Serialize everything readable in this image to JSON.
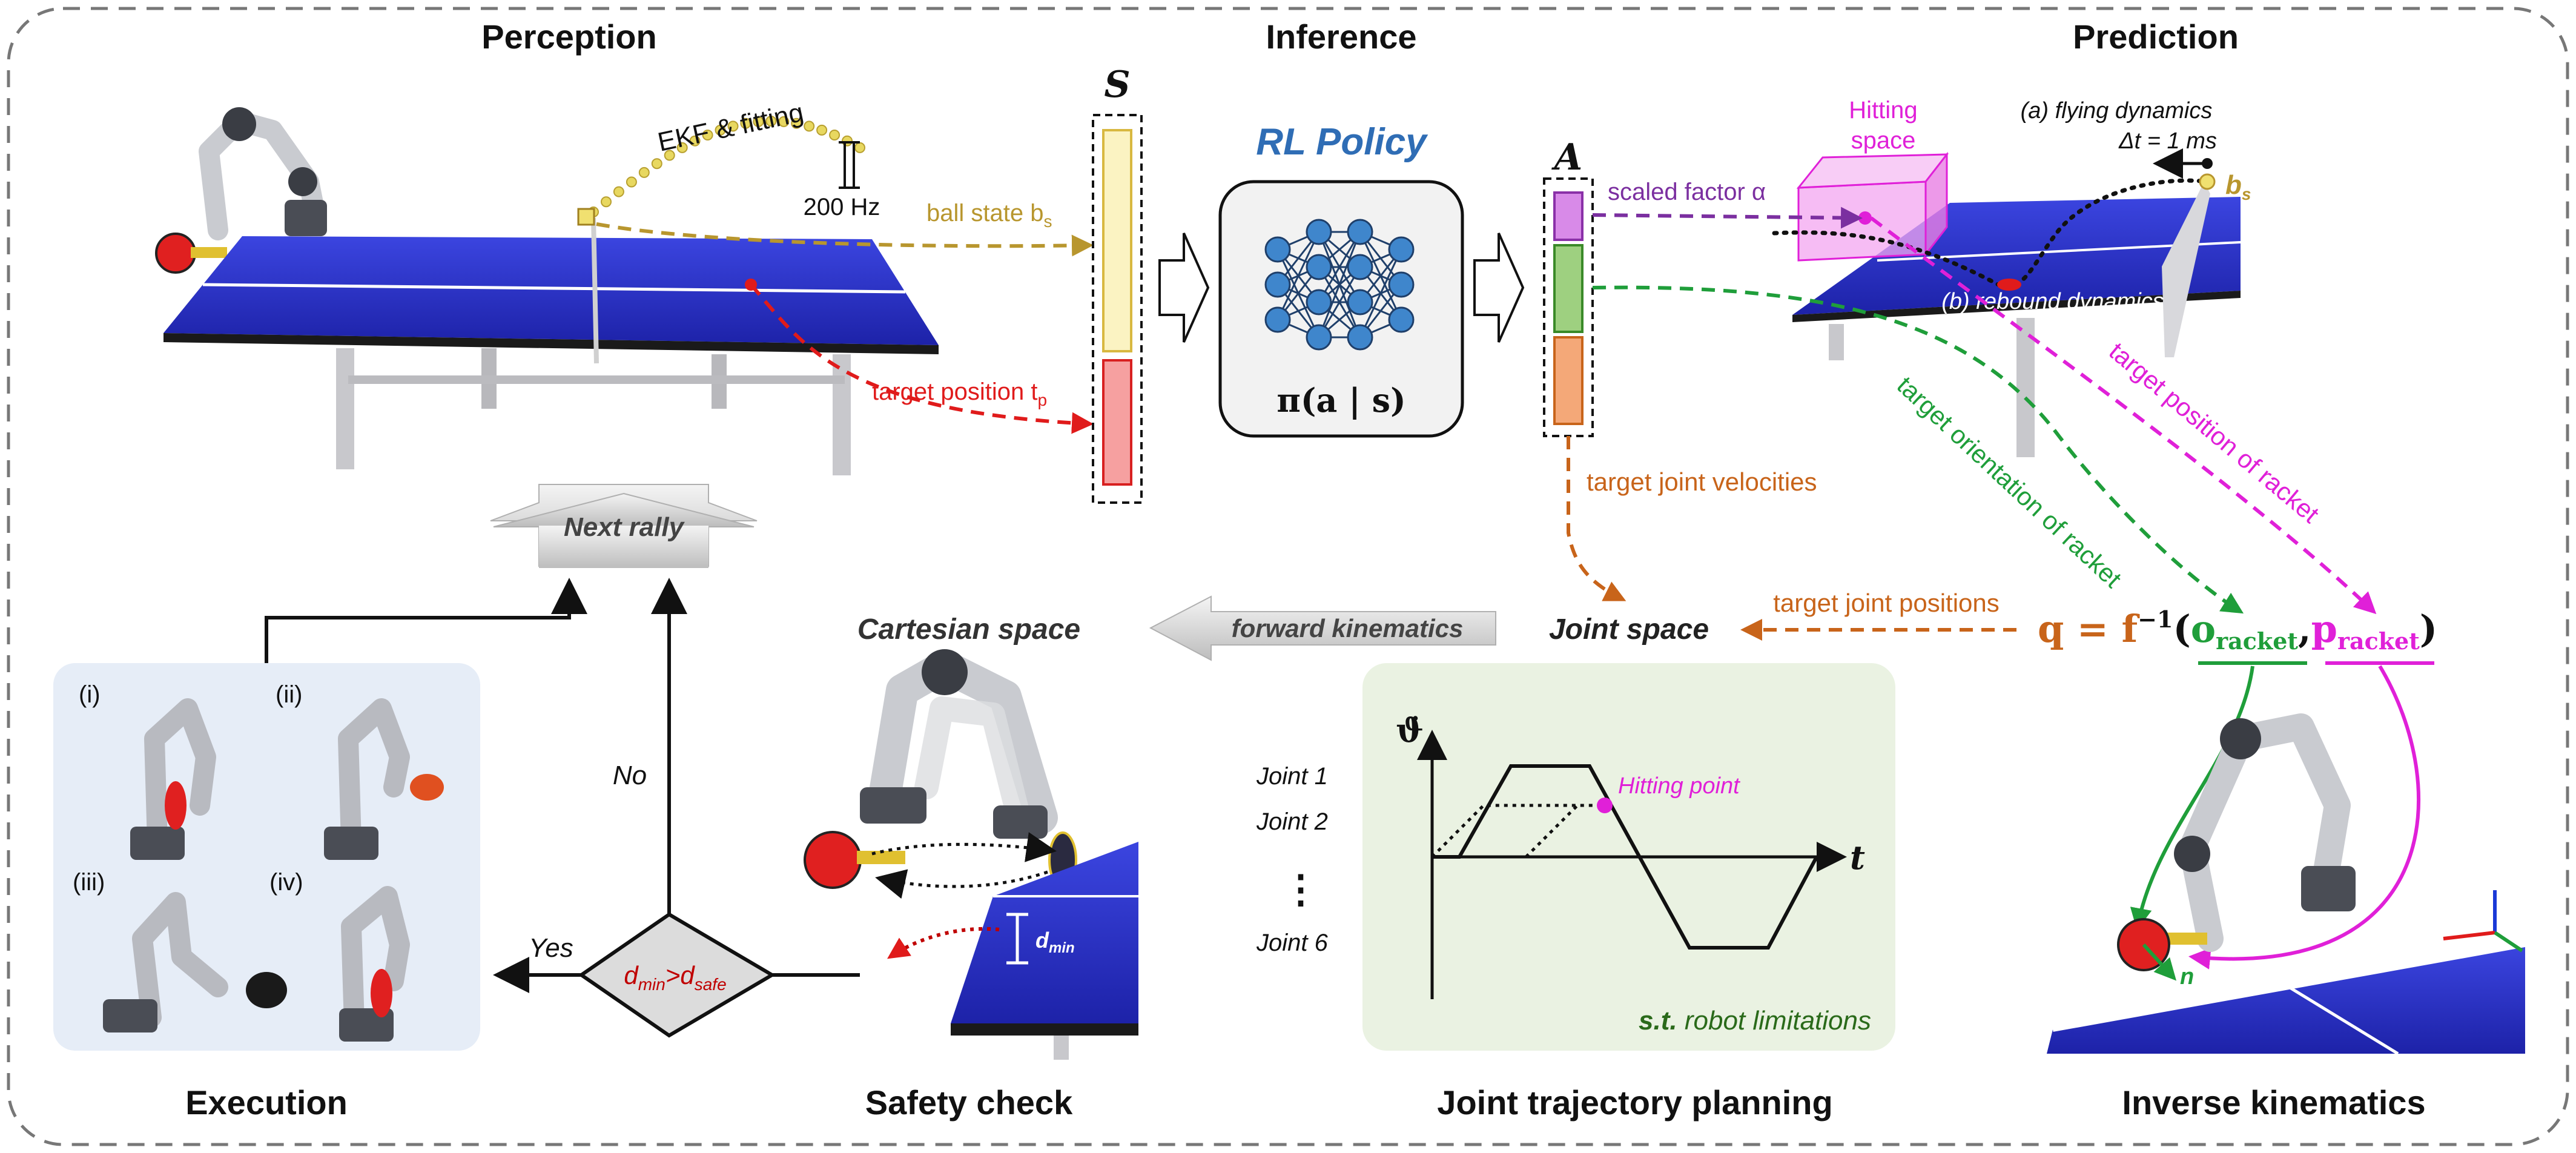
{
  "sections": {
    "perception": "Perception",
    "inference": "Inference",
    "prediction": "Prediction",
    "execution": "Execution",
    "safety_check": "Safety check",
    "joint_trajectory_planning": "Joint trajectory planning",
    "inverse_kinematics": "Inverse kinematics"
  },
  "perception": {
    "ekf_label": "EKF & fitting",
    "rate_label": "200 Hz",
    "ball_state_label": "ball state b",
    "ball_state_sub": "s",
    "target_position_label": "target position t",
    "target_position_sub": "p"
  },
  "inference": {
    "state_symbol": "S",
    "policy_title": "RL Policy",
    "policy_formula": "π(a | s)",
    "action_symbol": "A",
    "target_joint_velocities": "target joint velocities"
  },
  "prediction": {
    "scaled_factor": "scaled factor α",
    "hitting_space_line1": "Hitting",
    "hitting_space_line2": "space",
    "flying_dynamics": "(a) flying dynamics",
    "delta_t": "Δt = 1 ms",
    "ball_state_symbol": "b",
    "ball_state_symbol_sub": "s",
    "rebound_dynamics": "(b) rebound dynamics",
    "target_orientation": "target orientation of racket",
    "target_position_racket": "target position of racket"
  },
  "joint_space": {
    "title": "Joint space",
    "target_joint_positions": "target joint positions",
    "ik_formula_lhs": "q = f",
    "ik_formula_sup": "−1",
    "ik_formula_o": "o",
    "ik_formula_o_sub": "racket",
    "ik_formula_p": "p",
    "ik_formula_p_sub": "racket"
  },
  "trajectory": {
    "yaxis_label": "ϑ̇",
    "xaxis_label": "t",
    "joint1": "Joint 1",
    "joint2": "Joint 2",
    "dots": "⋮",
    "joint6": "Joint 6",
    "hitting_point": "Hitting point",
    "constraint_st": "s.t.",
    "constraint_rest": "robot limitations"
  },
  "safety": {
    "cartesian_space": "Cartesian space",
    "forward_kinematics": "forward kinematics",
    "dmin_label": "d",
    "dmin_sub": "min",
    "decision_d": "d",
    "decision_min": "min",
    "decision_gt": ">d",
    "decision_safe": "safe",
    "yes": "Yes",
    "no": "No",
    "next_rally": "Next rally"
  },
  "execution": {
    "i": "(i)",
    "ii": "(ii)",
    "iii": "(iii)",
    "iv": "(iv)"
  },
  "ik": {
    "normal_label": "n"
  },
  "colors": {
    "ball_state": "#b8962e",
    "target_position": "#e01b1b",
    "policy_blue": "#2f6db5",
    "scaled_factor": "#7b2fa0",
    "target_orientation": "#1f9e3a",
    "target_position_racket": "#e020d8",
    "joint": "#c8641a",
    "dmin_red": "#c00000",
    "table_blue": "#2a30c8",
    "execution_bg": "#e6edf7",
    "planning_bg": "#eaf2e2"
  }
}
